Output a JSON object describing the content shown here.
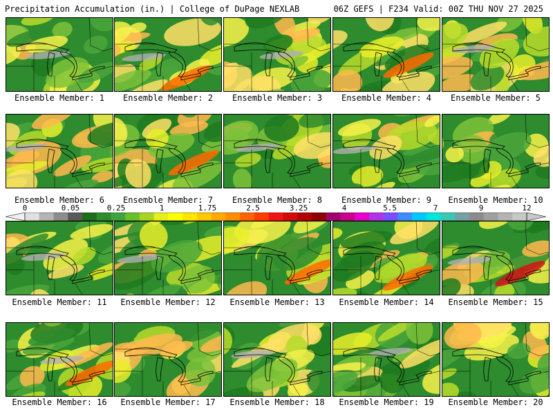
{
  "header": {
    "left": "Precipitation Accumulation (in.) | College of DuPage NEXLAB",
    "right": "06Z GEFS | F234 Valid: 00Z THU NOV 27 2025"
  },
  "panels": [
    {
      "label": "Ensemble Member: 1"
    },
    {
      "label": "Ensemble Member: 2"
    },
    {
      "label": "Ensemble Member: 3"
    },
    {
      "label": "Ensemble Member: 4"
    },
    {
      "label": "Ensemble Member: 5"
    },
    {
      "label": "Ensemble Member: 6"
    },
    {
      "label": "Ensemble Member: 7"
    },
    {
      "label": "Ensemble Member: 8"
    },
    {
      "label": "Ensemble Member: 9"
    },
    {
      "label": "Ensemble Member: 10"
    },
    {
      "label": "Ensemble Member: 11"
    },
    {
      "label": "Ensemble Member: 12"
    },
    {
      "label": "Ensemble Member: 13"
    },
    {
      "label": "Ensemble Member: 14"
    },
    {
      "label": "Ensemble Member: 15"
    },
    {
      "label": "Ensemble Member: 16"
    },
    {
      "label": "Ensemble Member: 17"
    },
    {
      "label": "Ensemble Member: 18"
    },
    {
      "label": "Ensemble Member: 19"
    },
    {
      "label": "Ensemble Member: 20"
    }
  ],
  "colorbar": {
    "labels": [
      "0",
      "0.05",
      "0.25",
      "1",
      "1.75",
      "2.5",
      "3.25",
      "4",
      "5.5",
      "7",
      "9",
      "12"
    ],
    "colors": [
      "#e0e0e0",
      "#b4b4b4",
      "#8c8c8c",
      "#5a5a5a",
      "#1e6e1e",
      "#2e8b2e",
      "#3fa33f",
      "#6cbf2c",
      "#a8d424",
      "#e6f01e",
      "#ffff00",
      "#ffe600",
      "#ffc800",
      "#ffaa00",
      "#ff8c00",
      "#ff6400",
      "#ff3c00",
      "#f01414",
      "#d20a0a",
      "#b40000",
      "#8c0000",
      "#a0006e",
      "#c8008c",
      "#e600c8",
      "#b432e6",
      "#7850ff",
      "#3c8cff",
      "#00c8ff",
      "#00e6dc",
      "#3cc8b4",
      "#78a0a0",
      "#8c8c8c",
      "#a0a0a0",
      "#b4b4b4",
      "#c8c8c8"
    ]
  }
}
